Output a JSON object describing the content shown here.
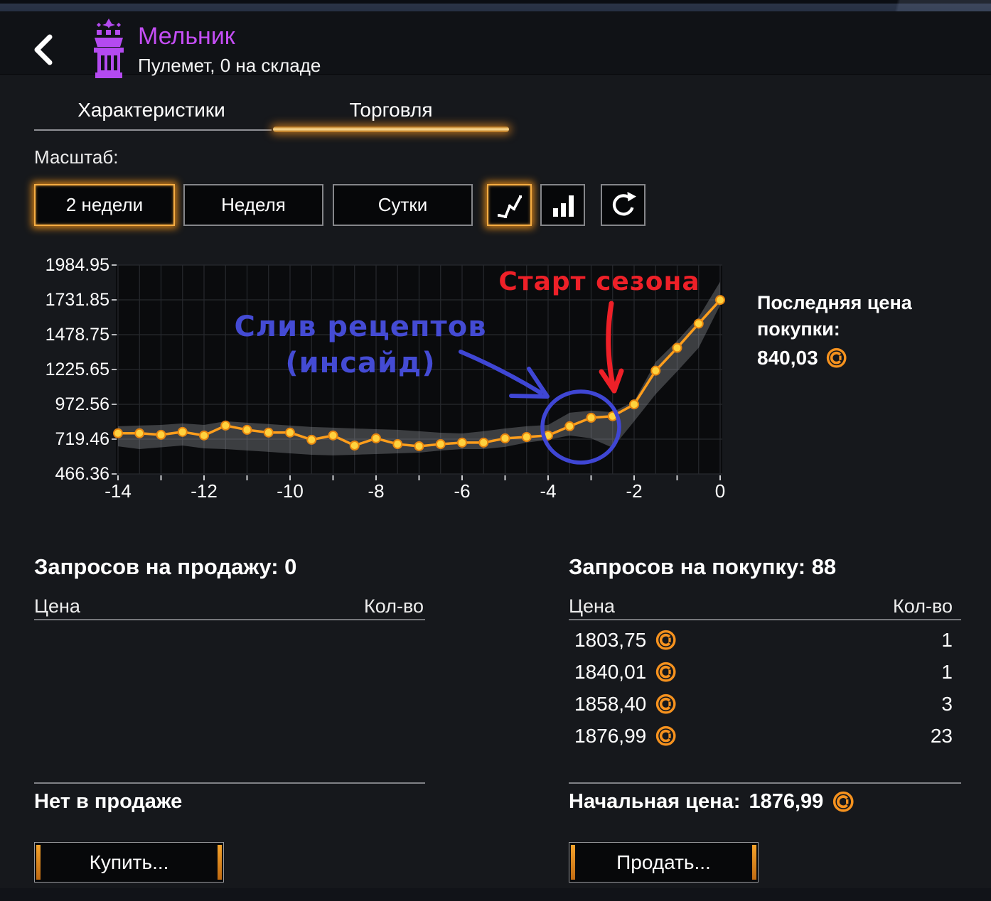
{
  "header": {
    "back_icon": "chevron-left",
    "title": "Мельник",
    "subtitle": "Пулемет, 0 на складе"
  },
  "tabs": [
    {
      "label": "Характеристики",
      "active": false
    },
    {
      "label": "Торговля",
      "active": true
    }
  ],
  "scale": {
    "label": "Масштаб:",
    "buttons": [
      "2 недели",
      "Неделя",
      "Сутки"
    ],
    "selected": "2 недели",
    "view_icons": [
      "line-chart",
      "bar-chart",
      "refresh"
    ],
    "selected_view": "line-chart"
  },
  "chart_data": {
    "type": "line",
    "x": [
      -14,
      -13.5,
      -13,
      -12.5,
      -12,
      -11.5,
      -11,
      -10.5,
      -10,
      -9.5,
      -9,
      -8.5,
      -8,
      -7.5,
      -7,
      -6.5,
      -6,
      -5.5,
      -5,
      -4.5,
      -4,
      -3.5,
      -3,
      -2.5,
      -2,
      -1.5,
      -1,
      -0.5,
      0
    ],
    "values": [
      762,
      762,
      751,
      772,
      746,
      818,
      787,
      767,
      767,
      715,
      746,
      673,
      725,
      683,
      668,
      683,
      694,
      694,
      725,
      735,
      746,
      813,
      875,
      886,
      972,
      1217,
      1383,
      1559,
      1731
    ],
    "band_hi": [
      813,
      818,
      823,
      834,
      823,
      849,
      839,
      829,
      818,
      808,
      803,
      797,
      792,
      787,
      777,
      766,
      761,
      777,
      797,
      813,
      823,
      911,
      927,
      916,
      994,
      1280,
      1434,
      1605,
      1864
    ],
    "band_lo": [
      667,
      647,
      660,
      673,
      652,
      647,
      637,
      627,
      616,
      606,
      601,
      606,
      611,
      616,
      621,
      637,
      647,
      647,
      663,
      694,
      715,
      746,
      725,
      657,
      849,
      1046,
      1212,
      1383,
      1694
    ],
    "y_ticks": [
      1984.95,
      1731.85,
      1478.75,
      1225.65,
      972.56,
      719.46,
      466.36
    ],
    "x_ticks": [
      -14,
      -12,
      -10,
      -8,
      -6,
      -4,
      -2,
      0
    ],
    "ylim": [
      466.36,
      1984.95
    ],
    "xlim": [
      -14,
      0
    ],
    "grid": true,
    "legend": "none",
    "line_color": "#ff9e1c",
    "point_color": "#ffd23e",
    "point_stroke": "#e8860f",
    "band_color": "rgba(168,171,178,0.32)",
    "annotations": {
      "red_text": "Старт сезона",
      "blue_text_line1": "Слив рецептов",
      "blue_text_line2": "(инсайд)",
      "red_color": "#ee2028",
      "blue_color": "#444bd4"
    }
  },
  "last_price": {
    "label_line1": "Последняя цена",
    "label_line2": "покупки:",
    "value": "840,03"
  },
  "sell_section": {
    "title": "Запросов на продажу: 0",
    "col_price": "Цена",
    "col_qty": "Кол-во",
    "rows": [],
    "empty_note": "Нет в продаже",
    "button": "Купить..."
  },
  "buy_section": {
    "title": "Запросов на покупку: 88",
    "col_price": "Цена",
    "col_qty": "Кол-во",
    "rows": [
      {
        "price": "1803,75",
        "qty": "1"
      },
      {
        "price": "1840,01",
        "qty": "1"
      },
      {
        "price": "1858,40",
        "qty": "3"
      },
      {
        "price": "1876,99",
        "qty": "23"
      }
    ],
    "start_price_label": "Начальная цена:",
    "start_price_value": "1876,99",
    "button": "Продать..."
  },
  "colors": {
    "accent_orange": "#f09a28",
    "title_purple": "#c44ef5",
    "coin_orange": "#f6921e",
    "plot_bg": "#0a0b0d",
    "page_bg": "#16181c"
  }
}
